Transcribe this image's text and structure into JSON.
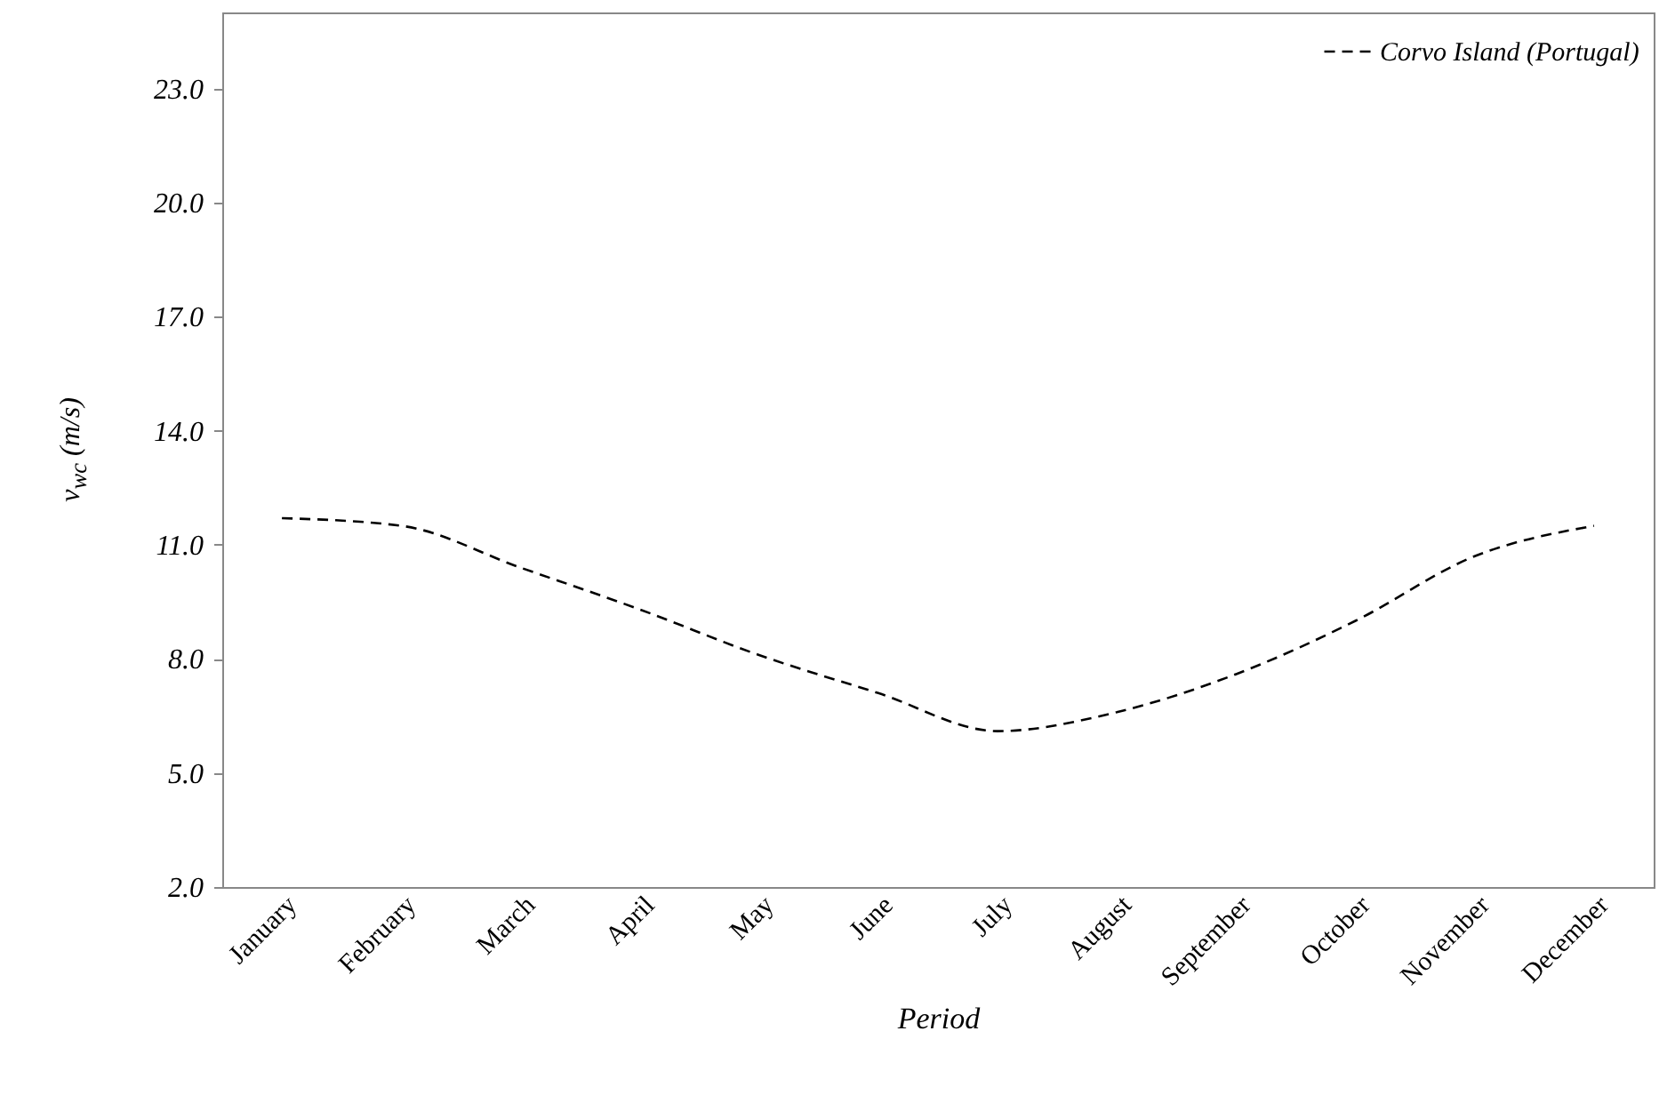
{
  "chart_data": {
    "type": "line",
    "xlabel": "Period",
    "ylabel": "v$_{wc}$ (m/s)",
    "categories": [
      "January",
      "February",
      "March",
      "April",
      "May",
      "June",
      "July",
      "August",
      "September",
      "October",
      "November",
      "December"
    ],
    "series": [
      {
        "name": "Corvo Island (Portugal)",
        "color": "#000000",
        "values": [
          11.7,
          11.5,
          10.4,
          9.3,
          8.1,
          7.1,
          6.1,
          6.6,
          7.6,
          9.0,
          10.7,
          11.5
        ]
      }
    ],
    "ylim": [
      2,
      25
    ],
    "yticks": [
      {
        "value": 2,
        "label": "2.0"
      },
      {
        "value": 5,
        "label": "5.0"
      },
      {
        "value": 8,
        "label": "8.0"
      },
      {
        "value": 11,
        "label": "11.0"
      },
      {
        "value": 14,
        "label": "14.0"
      },
      {
        "value": 17,
        "label": "17.0"
      },
      {
        "value": 20,
        "label": "20.0"
      },
      {
        "value": 23,
        "label": "23.0"
      }
    ],
    "grid": false,
    "legend": "top right",
    "line_style": "dashed",
    "marker": "none"
  }
}
